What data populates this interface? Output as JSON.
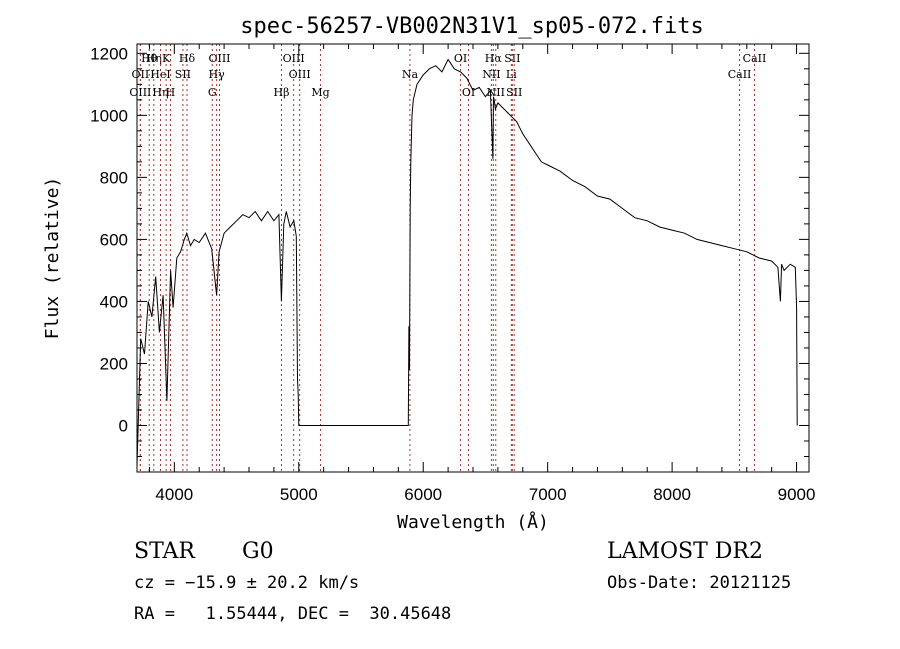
{
  "chart_data": {
    "type": "line",
    "title": "spec-56257-VB002N31V1_sp05-072.fits",
    "xlabel": "Wavelength (Å)",
    "ylabel": "Flux (relative)",
    "xlim": [
      3700,
      9100
    ],
    "ylim": [
      -150,
      1230
    ],
    "xticks": [
      4000,
      5000,
      6000,
      7000,
      8000,
      9000
    ],
    "yticks": [
      0,
      200,
      400,
      600,
      800,
      1000,
      1200
    ],
    "grid": false,
    "series": [
      {
        "x": [
          3700,
          3730,
          3760,
          3790,
          3820,
          3850,
          3880,
          3910,
          3940,
          3970,
          3990,
          4020,
          4050,
          4080,
          4100,
          4130,
          4160,
          4200,
          4250,
          4300,
          4340,
          4360,
          4400,
          4450,
          4500,
          4550,
          4600,
          4650,
          4700,
          4750,
          4800,
          4840,
          4860,
          4880,
          4900,
          4930,
          4960,
          4980,
          4990,
          4995,
          5000,
          5200,
          5400,
          5600,
          5800,
          5880,
          5885,
          5890,
          5895,
          5900,
          5910,
          5920,
          5950,
          6000,
          6050,
          6100,
          6150,
          6200,
          6250,
          6300,
          6350,
          6400,
          6450,
          6500,
          6540,
          6560,
          6565,
          6570,
          6580,
          6600,
          6650,
          6700,
          6750,
          6800,
          6850,
          6900,
          6950,
          7000,
          7100,
          7200,
          7300,
          7400,
          7500,
          7600,
          7700,
          7800,
          7900,
          8000,
          8100,
          8200,
          8300,
          8400,
          8500,
          8600,
          8700,
          8800,
          8850,
          8870,
          8880,
          8900,
          8950,
          8990,
          9000,
          9005
        ],
        "y": [
          -130,
          280,
          230,
          400,
          350,
          480,
          300,
          420,
          80,
          500,
          380,
          540,
          560,
          600,
          620,
          580,
          600,
          590,
          620,
          570,
          420,
          560,
          620,
          640,
          660,
          680,
          670,
          690,
          660,
          690,
          660,
          680,
          400,
          650,
          690,
          640,
          660,
          610,
          150,
          100,
          0,
          0,
          0,
          0,
          0,
          0,
          320,
          180,
          700,
          850,
          1000,
          1050,
          1100,
          1130,
          1150,
          1160,
          1140,
          1180,
          1150,
          1140,
          1120,
          1080,
          1090,
          1060,
          1080,
          860,
          1060,
          1050,
          1020,
          1040,
          1020,
          1000,
          980,
          940,
          910,
          880,
          850,
          840,
          820,
          790,
          770,
          740,
          730,
          700,
          670,
          660,
          640,
          630,
          620,
          600,
          590,
          580,
          570,
          560,
          540,
          530,
          510,
          400,
          520,
          500,
          520,
          510,
          380,
          0
        ]
      }
    ],
    "lines": [
      {
        "label": "Hθ",
        "x": 3798,
        "row": 1
      },
      {
        "label": "OII",
        "x": 3727,
        "row": 2
      },
      {
        "label": "OIII",
        "x": 3727,
        "row": 3
      },
      {
        "label": "Hη",
        "x": 3835,
        "row": 1
      },
      {
        "label": "HeI",
        "x": 3889,
        "row": 2
      },
      {
        "label": "Hη",
        "x": 3889,
        "row": 3
      },
      {
        "label": "K",
        "x": 3934,
        "row": 1
      },
      {
        "label": "SII",
        "x": 4069,
        "row": 2
      },
      {
        "label": "H",
        "x": 3969,
        "row": 3
      },
      {
        "label": "Hδ",
        "x": 4102,
        "row": 1
      },
      {
        "label": "OIII",
        "x": 4363,
        "row": 1
      },
      {
        "label": "Hγ",
        "x": 4340,
        "row": 2
      },
      {
        "label": "G",
        "x": 4305,
        "row": 3
      },
      {
        "label": "Hβ",
        "x": 4861,
        "row": 3
      },
      {
        "label": "OIII",
        "x": 4959,
        "row": 1
      },
      {
        "label": "OIII",
        "x": 5007,
        "row": 2
      },
      {
        "label": "Mg",
        "x": 5175,
        "row": 3
      },
      {
        "label": "Na",
        "x": 5893,
        "row": 2
      },
      {
        "label": "OI",
        "x": 6300,
        "row": 1
      },
      {
        "label": "OI",
        "x": 6364,
        "row": 3
      },
      {
        "label": "Hα",
        "x": 6563,
        "row": 1
      },
      {
        "label": "SII",
        "x": 6716,
        "row": 1
      },
      {
        "label": "NII",
        "x": 6548,
        "row": 2
      },
      {
        "label": "Li",
        "x": 6708,
        "row": 2
      },
      {
        "label": "NII",
        "x": 6583,
        "row": 3
      },
      {
        "label": "SII",
        "x": 6731,
        "row": 3
      },
      {
        "label": "CaII",
        "x": 8662,
        "row": 1
      },
      {
        "label": "CaII",
        "x": 8542,
        "row": 2
      }
    ]
  },
  "info": {
    "class_label": "STAR",
    "subclass": "G0",
    "survey": "LAMOST DR2",
    "cz": "cz = −15.9 ± 20.2 km/s",
    "obs_date": "Obs-Date: 20121125",
    "radec": "RA =   1.55444, DEC =  30.45648"
  }
}
